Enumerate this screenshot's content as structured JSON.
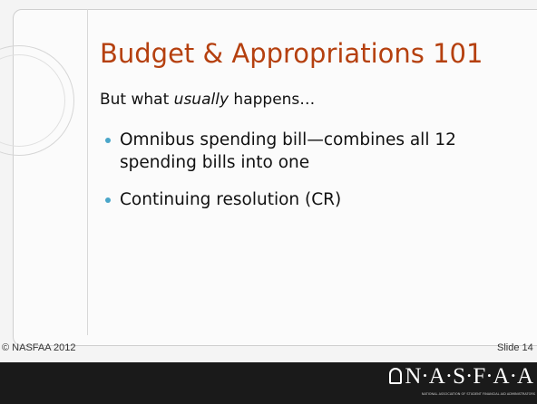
{
  "slide": {
    "title": "Budget & Appropriations 101",
    "intro": [
      "But what ",
      "usually",
      " happens…"
    ],
    "bullets": [
      "Omnibus spending bill—combines all 12 spending bills into one",
      "Continuing resolution (CR)"
    ],
    "footer_left": "© NASFAA 2012",
    "footer_right": "Slide 14",
    "logo": "N·A·S·F·A·A",
    "logo_subtitle": "NATIONAL ASSOCIATION OF STUDENT FINANCIAL AID ADMINISTRATORS"
  }
}
